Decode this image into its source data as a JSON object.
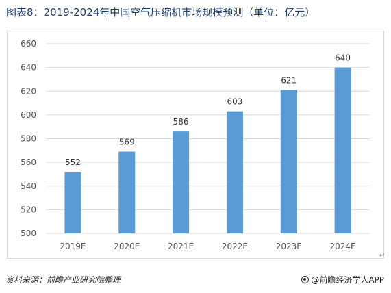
{
  "header": {
    "title": "图表8：2019-2024年中国空气压缩机市场规模预测（单位：亿元）"
  },
  "chart_data": {
    "type": "bar",
    "categories": [
      "2019E",
      "2020E",
      "2021E",
      "2022E",
      "2023E",
      "2024E"
    ],
    "values": [
      552,
      569,
      586,
      603,
      621,
      640
    ],
    "title": "",
    "xlabel": "",
    "ylabel": "",
    "ylim": [
      500,
      660
    ],
    "yticks": [
      500,
      520,
      540,
      560,
      580,
      600,
      620,
      640,
      660
    ],
    "grid": true,
    "bar_color": "#5b9bd5",
    "data_labels": true
  },
  "footer": {
    "source": "资料来源：前瞻产业研究院整理",
    "brand": "@前瞻经济学人APP",
    "return_mark": "↵"
  },
  "colors": {
    "title": "#1f3f6b",
    "grid": "#d9d9d9",
    "bar": "#5b9bd5"
  }
}
